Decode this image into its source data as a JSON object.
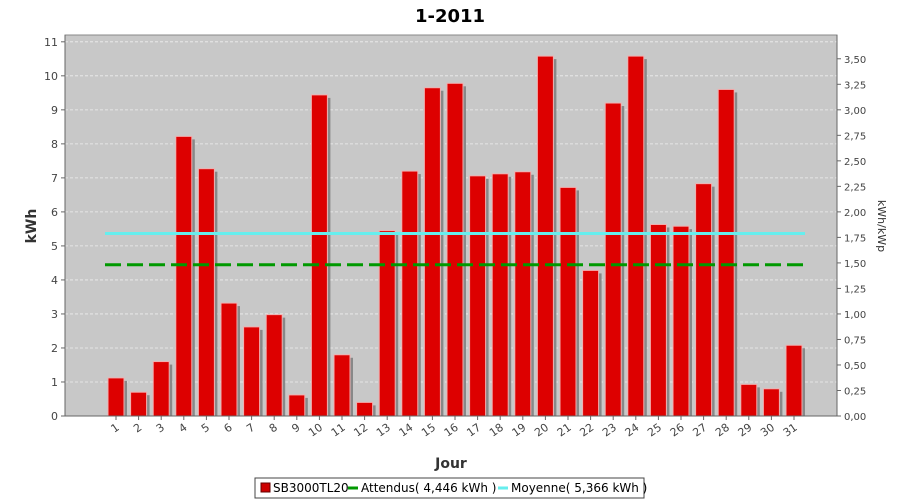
{
  "chart_data": {
    "type": "bar",
    "title": "1-2011",
    "xlabel": "Jour",
    "ylabel": "kWh",
    "ylabel_right": "kWh/kWp",
    "categories": [
      "1",
      "2",
      "3",
      "4",
      "5",
      "6",
      "7",
      "8",
      "9",
      "10",
      "11",
      "12",
      "13",
      "14",
      "15",
      "16",
      "17",
      "18",
      "19",
      "20",
      "21",
      "22",
      "23",
      "24",
      "25",
      "26",
      "27",
      "28",
      "29",
      "30",
      "31"
    ],
    "series": [
      {
        "name": "SB3000TL20",
        "color": "#dd0000",
        "values": [
          1.12,
          0.7,
          1.6,
          8.22,
          7.27,
          3.32,
          2.62,
          2.98,
          0.62,
          9.44,
          1.8,
          0.4,
          5.45,
          7.2,
          9.65,
          9.78,
          7.06,
          7.12,
          7.18,
          10.58,
          6.72,
          4.28,
          9.2,
          10.58,
          5.63,
          5.58,
          6.83,
          9.6,
          0.93,
          0.8,
          2.08
        ]
      }
    ],
    "ylim": [
      0,
      11.2
    ],
    "y_ticks": [
      "0",
      "1",
      "2",
      "3",
      "4",
      "5",
      "6",
      "7",
      "8",
      "9",
      "10",
      "11"
    ],
    "y_ticks_right": [
      "0,00",
      "0,25",
      "0,50",
      "0,75",
      "1,00",
      "1,25",
      "1,50",
      "1,75",
      "2,00",
      "2,25",
      "2,50",
      "2,75",
      "3,00",
      "3,25",
      "3,50"
    ],
    "y_ticks_right_values": [
      0,
      0.25,
      0.5,
      0.75,
      1.0,
      1.25,
      1.5,
      1.75,
      2.0,
      2.25,
      2.5,
      2.75,
      3.0,
      3.25,
      3.5
    ],
    "ylim_right": [
      0,
      3.733
    ],
    "reference_lines": [
      {
        "name": "Attendus",
        "value": 4.446,
        "color": "#009900",
        "style": "dashed"
      },
      {
        "name": "Moyenne",
        "value": 5.366,
        "color": "#66eeee",
        "style": "solid"
      }
    ],
    "legend": {
      "position": "bottom",
      "items": [
        "SB3000TL20",
        "Attendus( 4,446 kWh )",
        "Moyenne( 5,366 kWh )"
      ]
    },
    "grid": true,
    "plot_background": "#c8c8c8"
  }
}
